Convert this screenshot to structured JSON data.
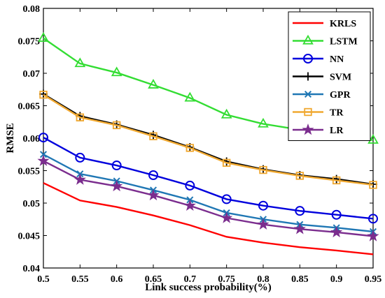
{
  "chart_data": {
    "type": "line",
    "xlabel": "Link success probability(%)",
    "ylabel": "RMSE",
    "xlim": [
      0.5,
      0.95
    ],
    "ylim": [
      0.04,
      0.08
    ],
    "x": [
      0.5,
      0.55,
      0.6,
      0.65,
      0.7,
      0.75,
      0.8,
      0.85,
      0.9,
      0.95
    ],
    "x_ticks": [
      "0.5",
      "0.55",
      "0.6",
      "0.65",
      "0.7",
      "0.75",
      "0.8",
      "0.85",
      "0.9",
      "0.95"
    ],
    "y_ticks": [
      {
        "value": 0.04,
        "label": "0.04"
      },
      {
        "value": 0.045,
        "label": "0.045"
      },
      {
        "value": 0.05,
        "label": "0.05"
      },
      {
        "value": 0.055,
        "label": "0.055"
      },
      {
        "value": 0.06,
        "label": "0.06"
      },
      {
        "value": 0.065,
        "label": "0.065"
      },
      {
        "value": 0.07,
        "label": "0.07"
      },
      {
        "value": 0.075,
        "label": "0.075"
      },
      {
        "value": 0.08,
        "label": "0.08"
      }
    ],
    "grid": false,
    "legend_position": "top-right",
    "series": [
      {
        "name": "KRLS",
        "color": "#ff0000",
        "marker": "none",
        "values": [
          0.0531,
          0.0504,
          0.0494,
          0.0481,
          0.0466,
          0.0448,
          0.0439,
          0.0432,
          0.0427,
          0.0421
        ]
      },
      {
        "name": "LSTM",
        "color": "#33dd33",
        "marker": "triangle",
        "values": [
          0.0754,
          0.0715,
          0.0701,
          0.0682,
          0.0662,
          0.0636,
          0.0622,
          0.0613,
          0.0606,
          0.0597
        ]
      },
      {
        "name": "NN",
        "color": "#0000dd",
        "marker": "circle",
        "values": [
          0.0601,
          0.057,
          0.0558,
          0.0543,
          0.0527,
          0.0506,
          0.0496,
          0.0488,
          0.0482,
          0.0476
        ]
      },
      {
        "name": "SVM",
        "color": "#000000",
        "marker": "plus",
        "values": [
          0.0668,
          0.0634,
          0.0621,
          0.0605,
          0.0586,
          0.0564,
          0.0552,
          0.0543,
          0.0537,
          0.0529
        ]
      },
      {
        "name": "GPR",
        "color": "#1f77b4",
        "marker": "x",
        "values": [
          0.0575,
          0.0545,
          0.0534,
          0.052,
          0.0505,
          0.0485,
          0.0475,
          0.0467,
          0.0462,
          0.0456
        ]
      },
      {
        "name": "TR",
        "color": "#f0a830",
        "marker": "square",
        "values": [
          0.0667,
          0.0632,
          0.062,
          0.0603,
          0.0585,
          0.0562,
          0.0551,
          0.0542,
          0.0535,
          0.0528
        ]
      },
      {
        "name": "LR",
        "color": "#7b2d8e",
        "marker": "star",
        "values": [
          0.0565,
          0.0536,
          0.0526,
          0.0512,
          0.0496,
          0.0477,
          0.0467,
          0.046,
          0.0455,
          0.0449
        ]
      }
    ]
  }
}
